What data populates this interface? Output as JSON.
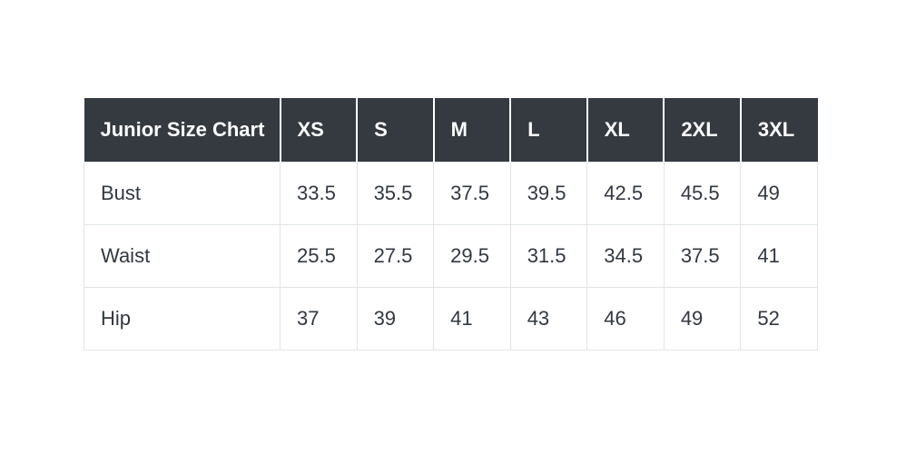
{
  "chart_data": {
    "type": "table",
    "title": "Junior Size Chart",
    "columns": [
      "XS",
      "S",
      "M",
      "L",
      "XL",
      "2XL",
      "3XL"
    ],
    "rows": [
      {
        "label": "Bust",
        "values": [
          33.5,
          35.5,
          37.5,
          39.5,
          42.5,
          45.5,
          49
        ]
      },
      {
        "label": "Waist",
        "values": [
          25.5,
          27.5,
          29.5,
          31.5,
          34.5,
          37.5,
          41
        ]
      },
      {
        "label": "Hip",
        "values": [
          37,
          39,
          41,
          43,
          46,
          49,
          52
        ]
      }
    ],
    "layout_hints": {
      "header_position": "top row, dark background",
      "row_labels_position": "first column",
      "grid": true
    }
  },
  "colors": {
    "header_bg": "#343a40",
    "header_text": "#ffffff",
    "body_text": "#323840",
    "border": "#e1e4e7",
    "page_bg": "#ffffff"
  }
}
